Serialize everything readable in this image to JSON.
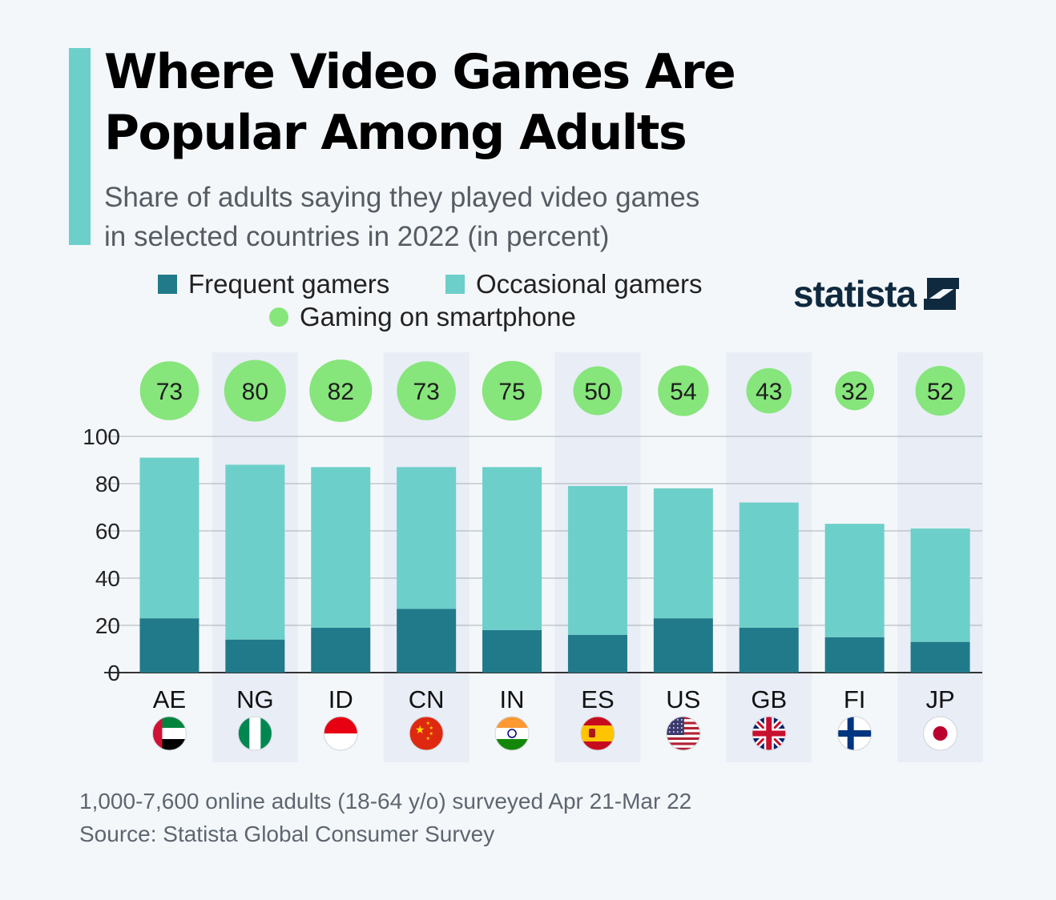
{
  "title": {
    "line1": "Where Video Games Are",
    "line2": "Popular Among Adults"
  },
  "subtitle": {
    "line1": "Share of adults saying they played video games",
    "line2": "in selected countries in 2022 (in percent)"
  },
  "legend": {
    "frequent": "Frequent gamers",
    "occasional": "Occasional gamers",
    "smartphone": "Gaming on smartphone"
  },
  "brand": {
    "name": "statista"
  },
  "colors": {
    "frequent": "#217a8a",
    "occasional": "#6dcfc9",
    "smartphone": "#86e57b",
    "shade": "#e8edf6",
    "grid": "#a9b0b7",
    "accent": "#6dcfc9"
  },
  "chart_data": {
    "type": "bar",
    "stacked": true,
    "categories": [
      "AE",
      "NG",
      "ID",
      "CN",
      "IN",
      "ES",
      "US",
      "GB",
      "FI",
      "JP"
    ],
    "series": [
      {
        "name": "Frequent gamers",
        "values": [
          23,
          14,
          19,
          27,
          18,
          16,
          23,
          19,
          15,
          13
        ]
      },
      {
        "name": "Occasional gamers",
        "values": [
          68,
          74,
          68,
          60,
          69,
          63,
          55,
          53,
          48,
          48
        ]
      }
    ],
    "totals": [
      91,
      88,
      87,
      87,
      87,
      79,
      78,
      72,
      63,
      61
    ],
    "smartphone": {
      "name": "Gaming on smartphone",
      "values": [
        73,
        80,
        82,
        73,
        75,
        50,
        54,
        43,
        32,
        52
      ]
    },
    "flags": [
      "flag-ae-icon",
      "flag-ng-icon",
      "flag-id-icon",
      "flag-cn-icon",
      "flag-in-icon",
      "flag-es-icon",
      "flag-us-icon",
      "flag-gb-icon",
      "flag-fi-icon",
      "flag-jp-icon"
    ],
    "yticks": [
      0,
      20,
      40,
      60,
      80,
      100
    ],
    "ylim": [
      0,
      100
    ],
    "grid": true,
    "shaded_columns": [
      "NG",
      "CN",
      "ES",
      "GB",
      "JP"
    ]
  },
  "footer": {
    "note": "1,000-7,600 online adults (18-64 y/o) surveyed Apr 21-Mar 22",
    "source": "Source: Statista Global Consumer Survey"
  }
}
